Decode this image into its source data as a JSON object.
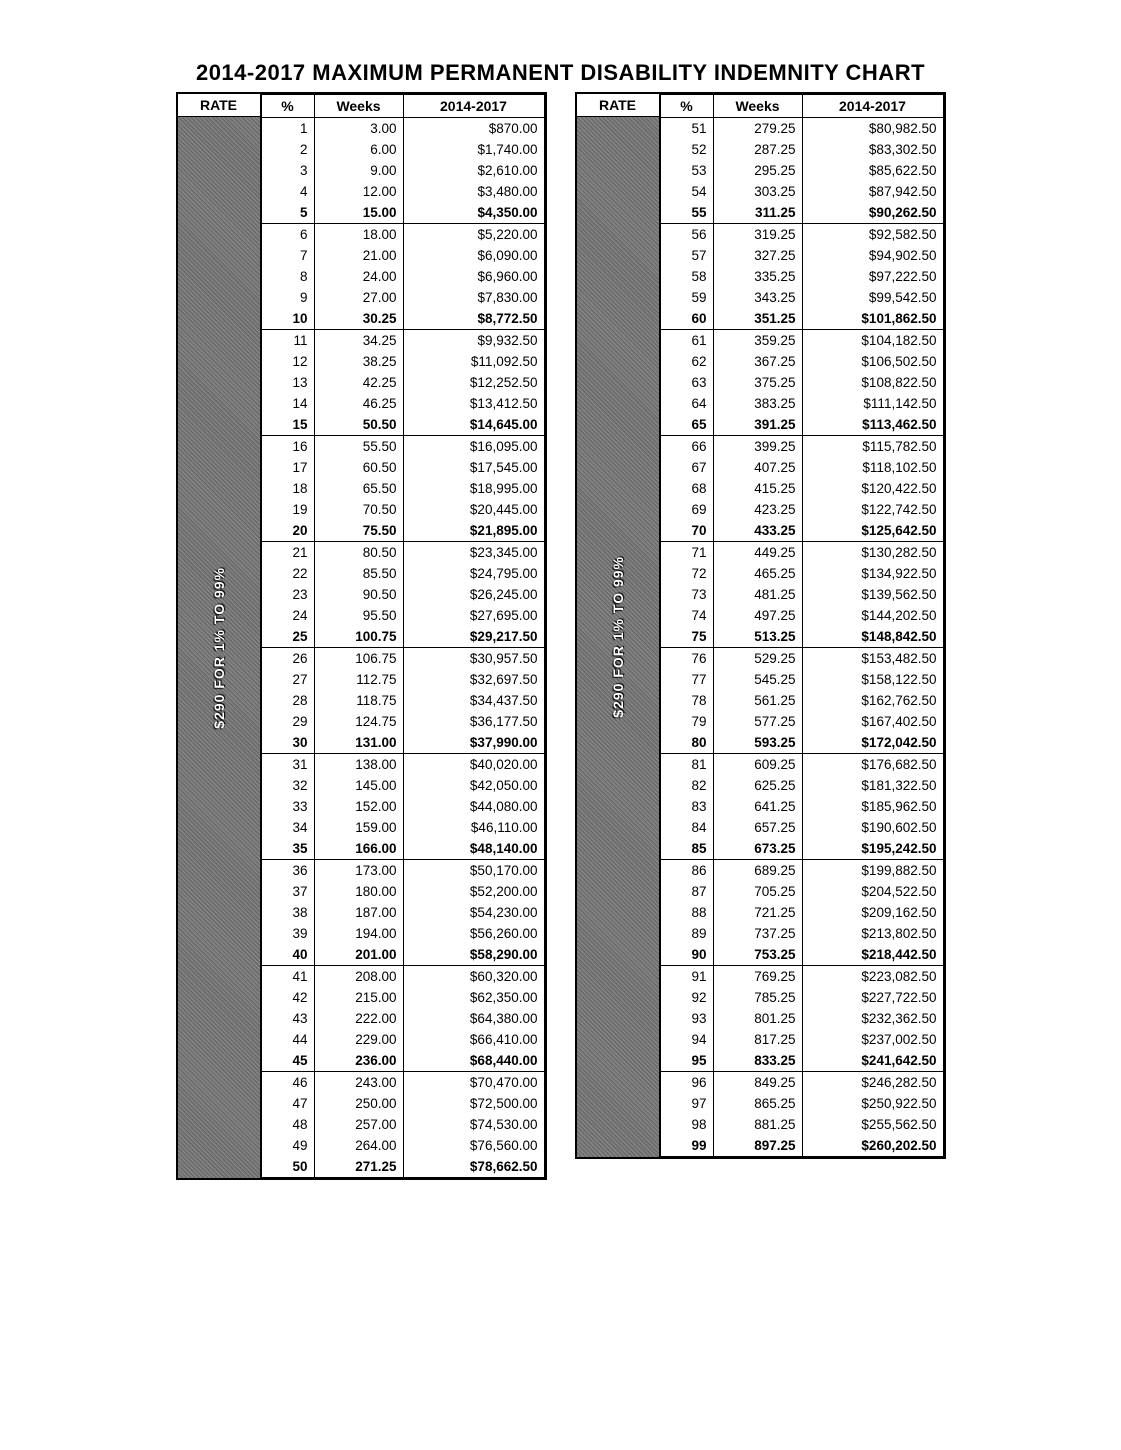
{
  "title": "2014-2017 MAXIMUM PERMANENT DISABILITY INDEMNITY CHART",
  "headers": {
    "rate": "RATE",
    "pct": "%",
    "weeks": "Weeks",
    "period": "2014-2017"
  },
  "rate_label": "$290 FOR 1% TO 99%",
  "left": [
    {
      "p": "1",
      "w": "3.00",
      "a": "$870.00"
    },
    {
      "p": "2",
      "w": "6.00",
      "a": "$1,740.00"
    },
    {
      "p": "3",
      "w": "9.00",
      "a": "$2,610.00"
    },
    {
      "p": "4",
      "w": "12.00",
      "a": "$3,480.00"
    },
    {
      "p": "5",
      "w": "15.00",
      "a": "$4,350.00",
      "g": true
    },
    {
      "p": "6",
      "w": "18.00",
      "a": "$5,220.00"
    },
    {
      "p": "7",
      "w": "21.00",
      "a": "$6,090.00"
    },
    {
      "p": "8",
      "w": "24.00",
      "a": "$6,960.00"
    },
    {
      "p": "9",
      "w": "27.00",
      "a": "$7,830.00"
    },
    {
      "p": "10",
      "w": "30.25",
      "a": "$8,772.50",
      "g": true
    },
    {
      "p": "11",
      "w": "34.25",
      "a": "$9,932.50"
    },
    {
      "p": "12",
      "w": "38.25",
      "a": "$11,092.50"
    },
    {
      "p": "13",
      "w": "42.25",
      "a": "$12,252.50"
    },
    {
      "p": "14",
      "w": "46.25",
      "a": "$13,412.50"
    },
    {
      "p": "15",
      "w": "50.50",
      "a": "$14,645.00",
      "g": true
    },
    {
      "p": "16",
      "w": "55.50",
      "a": "$16,095.00"
    },
    {
      "p": "17",
      "w": "60.50",
      "a": "$17,545.00"
    },
    {
      "p": "18",
      "w": "65.50",
      "a": "$18,995.00"
    },
    {
      "p": "19",
      "w": "70.50",
      "a": "$20,445.00"
    },
    {
      "p": "20",
      "w": "75.50",
      "a": "$21,895.00",
      "g": true
    },
    {
      "p": "21",
      "w": "80.50",
      "a": "$23,345.00"
    },
    {
      "p": "22",
      "w": "85.50",
      "a": "$24,795.00"
    },
    {
      "p": "23",
      "w": "90.50",
      "a": "$26,245.00"
    },
    {
      "p": "24",
      "w": "95.50",
      "a": "$27,695.00"
    },
    {
      "p": "25",
      "w": "100.75",
      "a": "$29,217.50",
      "g": true
    },
    {
      "p": "26",
      "w": "106.75",
      "a": "$30,957.50"
    },
    {
      "p": "27",
      "w": "112.75",
      "a": "$32,697.50"
    },
    {
      "p": "28",
      "w": "118.75",
      "a": "$34,437.50"
    },
    {
      "p": "29",
      "w": "124.75",
      "a": "$36,177.50"
    },
    {
      "p": "30",
      "w": "131.00",
      "a": "$37,990.00",
      "g": true
    },
    {
      "p": "31",
      "w": "138.00",
      "a": "$40,020.00"
    },
    {
      "p": "32",
      "w": "145.00",
      "a": "$42,050.00"
    },
    {
      "p": "33",
      "w": "152.00",
      "a": "$44,080.00"
    },
    {
      "p": "34",
      "w": "159.00",
      "a": "$46,110.00"
    },
    {
      "p": "35",
      "w": "166.00",
      "a": "$48,140.00",
      "g": true
    },
    {
      "p": "36",
      "w": "173.00",
      "a": "$50,170.00"
    },
    {
      "p": "37",
      "w": "180.00",
      "a": "$52,200.00"
    },
    {
      "p": "38",
      "w": "187.00",
      "a": "$54,230.00"
    },
    {
      "p": "39",
      "w": "194.00",
      "a": "$56,260.00"
    },
    {
      "p": "40",
      "w": "201.00",
      "a": "$58,290.00",
      "g": true
    },
    {
      "p": "41",
      "w": "208.00",
      "a": "$60,320.00"
    },
    {
      "p": "42",
      "w": "215.00",
      "a": "$62,350.00"
    },
    {
      "p": "43",
      "w": "222.00",
      "a": "$64,380.00"
    },
    {
      "p": "44",
      "w": "229.00",
      "a": "$66,410.00"
    },
    {
      "p": "45",
      "w": "236.00",
      "a": "$68,440.00",
      "g": true
    },
    {
      "p": "46",
      "w": "243.00",
      "a": "$70,470.00"
    },
    {
      "p": "47",
      "w": "250.00",
      "a": "$72,500.00"
    },
    {
      "p": "48",
      "w": "257.00",
      "a": "$74,530.00"
    },
    {
      "p": "49",
      "w": "264.00",
      "a": "$76,560.00"
    },
    {
      "p": "50",
      "w": "271.25",
      "a": "$78,662.50",
      "g": true
    }
  ],
  "right": [
    {
      "p": "51",
      "w": "279.25",
      "a": "$80,982.50"
    },
    {
      "p": "52",
      "w": "287.25",
      "a": "$83,302.50"
    },
    {
      "p": "53",
      "w": "295.25",
      "a": "$85,622.50"
    },
    {
      "p": "54",
      "w": "303.25",
      "a": "$87,942.50"
    },
    {
      "p": "55",
      "w": "311.25",
      "a": "$90,262.50",
      "g": true
    },
    {
      "p": "56",
      "w": "319.25",
      "a": "$92,582.50"
    },
    {
      "p": "57",
      "w": "327.25",
      "a": "$94,902.50"
    },
    {
      "p": "58",
      "w": "335.25",
      "a": "$97,222.50"
    },
    {
      "p": "59",
      "w": "343.25",
      "a": "$99,542.50"
    },
    {
      "p": "60",
      "w": "351.25",
      "a": "$101,862.50",
      "g": true
    },
    {
      "p": "61",
      "w": "359.25",
      "a": "$104,182.50"
    },
    {
      "p": "62",
      "w": "367.25",
      "a": "$106,502.50"
    },
    {
      "p": "63",
      "w": "375.25",
      "a": "$108,822.50"
    },
    {
      "p": "64",
      "w": "383.25",
      "a": "$111,142.50"
    },
    {
      "p": "65",
      "w": "391.25",
      "a": "$113,462.50",
      "g": true
    },
    {
      "p": "66",
      "w": "399.25",
      "a": "$115,782.50"
    },
    {
      "p": "67",
      "w": "407.25",
      "a": "$118,102.50"
    },
    {
      "p": "68",
      "w": "415.25",
      "a": "$120,422.50"
    },
    {
      "p": "69",
      "w": "423.25",
      "a": "$122,742.50"
    },
    {
      "p": "70",
      "w": "433.25",
      "a": "$125,642.50",
      "g": true
    },
    {
      "p": "71",
      "w": "449.25",
      "a": "$130,282.50"
    },
    {
      "p": "72",
      "w": "465.25",
      "a": "$134,922.50"
    },
    {
      "p": "73",
      "w": "481.25",
      "a": "$139,562.50"
    },
    {
      "p": "74",
      "w": "497.25",
      "a": "$144,202.50"
    },
    {
      "p": "75",
      "w": "513.25",
      "a": "$148,842.50",
      "g": true
    },
    {
      "p": "76",
      "w": "529.25",
      "a": "$153,482.50"
    },
    {
      "p": "77",
      "w": "545.25",
      "a": "$158,122.50"
    },
    {
      "p": "78",
      "w": "561.25",
      "a": "$162,762.50"
    },
    {
      "p": "79",
      "w": "577.25",
      "a": "$167,402.50"
    },
    {
      "p": "80",
      "w": "593.25",
      "a": "$172,042.50",
      "g": true
    },
    {
      "p": "81",
      "w": "609.25",
      "a": "$176,682.50"
    },
    {
      "p": "82",
      "w": "625.25",
      "a": "$181,322.50"
    },
    {
      "p": "83",
      "w": "641.25",
      "a": "$185,962.50"
    },
    {
      "p": "84",
      "w": "657.25",
      "a": "$190,602.50"
    },
    {
      "p": "85",
      "w": "673.25",
      "a": "$195,242.50",
      "g": true
    },
    {
      "p": "86",
      "w": "689.25",
      "a": "$199,882.50"
    },
    {
      "p": "87",
      "w": "705.25",
      "a": "$204,522.50"
    },
    {
      "p": "88",
      "w": "721.25",
      "a": "$209,162.50"
    },
    {
      "p": "89",
      "w": "737.25",
      "a": "$213,802.50"
    },
    {
      "p": "90",
      "w": "753.25",
      "a": "$218,442.50",
      "g": true
    },
    {
      "p": "91",
      "w": "769.25",
      "a": "$223,082.50"
    },
    {
      "p": "92",
      "w": "785.25",
      "a": "$227,722.50"
    },
    {
      "p": "93",
      "w": "801.25",
      "a": "$232,362.50"
    },
    {
      "p": "94",
      "w": "817.25",
      "a": "$237,002.50"
    },
    {
      "p": "95",
      "w": "833.25",
      "a": "$241,642.50",
      "g": true
    },
    {
      "p": "96",
      "w": "849.25",
      "a": "$246,282.50"
    },
    {
      "p": "97",
      "w": "865.25",
      "a": "$250,922.50"
    },
    {
      "p": "98",
      "w": "881.25",
      "a": "$255,562.50"
    },
    {
      "p": "99",
      "w": "897.25",
      "a": "$260,202.50",
      "g": true
    }
  ]
}
